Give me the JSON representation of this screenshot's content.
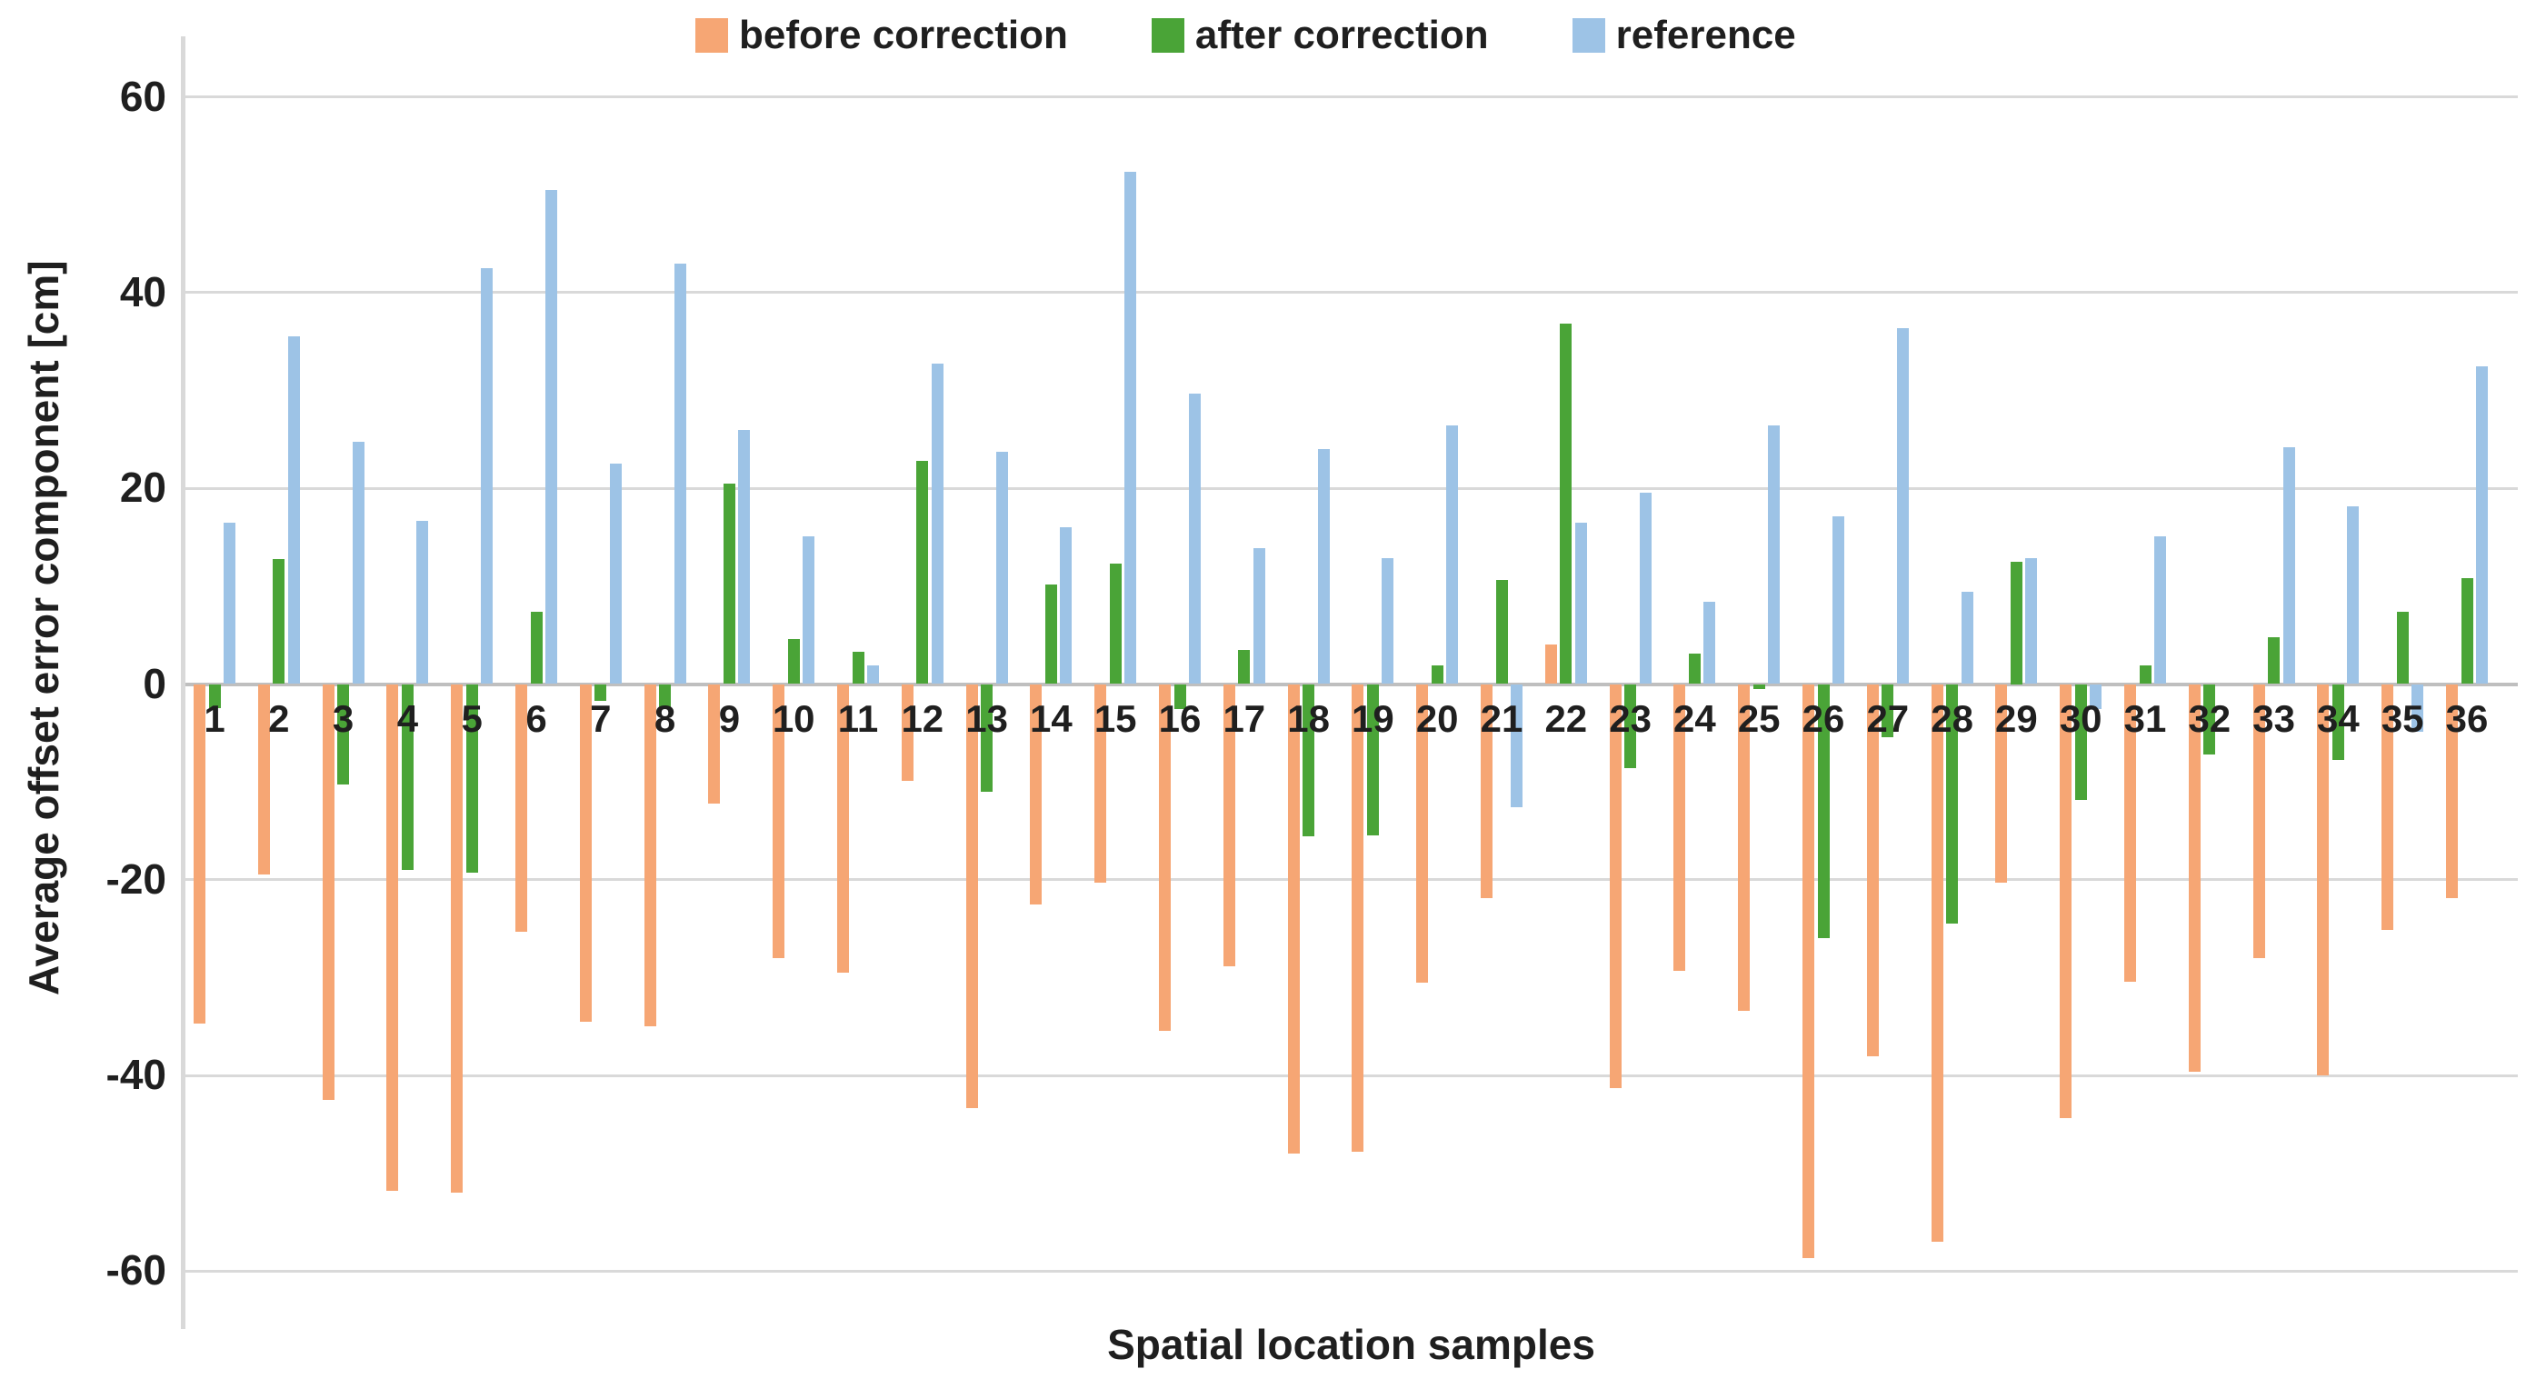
{
  "axes": {
    "y_title": "Average offset error component [cm]",
    "x_title": "Spatial location samples"
  },
  "chart_data": {
    "type": "bar",
    "title": "",
    "xlabel": "Spatial location samples",
    "ylabel": "Average offset error component [cm]",
    "ylim": [
      -66,
      62
    ],
    "yticks": [
      60,
      40,
      20,
      0,
      -20,
      -40,
      -60
    ],
    "grid": true,
    "legend_position": "top",
    "categories": [
      "1",
      "2",
      "3",
      "4",
      "5",
      "6",
      "7",
      "8",
      "9",
      "10",
      "11",
      "12",
      "13",
      "14",
      "15",
      "16",
      "17",
      "18",
      "19",
      "20",
      "21",
      "22",
      "23",
      "24",
      "25",
      "26",
      "27",
      "28",
      "29",
      "30",
      "31",
      "32",
      "33",
      "34",
      "35",
      "36"
    ],
    "series": [
      {
        "name": "before correction",
        "color": "#F6A674",
        "values": [
          -34.7,
          -19.5,
          -42.5,
          -51.8,
          -52.0,
          -25.3,
          -34.5,
          -35.0,
          -12.2,
          -28.0,
          -29.5,
          -9.9,
          -43.3,
          -22.5,
          -20.3,
          -35.4,
          -28.8,
          -48.0,
          -47.8,
          -30.5,
          -21.9,
          4.0,
          -41.3,
          -29.3,
          -33.4,
          -58.7,
          -38.0,
          -57.0,
          -20.3,
          -44.4,
          -30.4,
          -39.6,
          -28.0,
          -40.0,
          -25.1,
          -21.9
        ]
      },
      {
        "name": "after correction",
        "color": "#4AA437",
        "values": [
          -2.5,
          12.8,
          -10.3,
          -19.0,
          -19.3,
          7.4,
          -1.7,
          -2.4,
          20.5,
          4.6,
          3.3,
          22.8,
          -11.0,
          10.2,
          12.3,
          -2.6,
          3.5,
          -15.6,
          -15.5,
          1.9,
          10.6,
          36.8,
          -8.6,
          3.1,
          -0.5,
          -26.0,
          -5.4,
          -24.5,
          12.5,
          -11.8,
          1.9,
          -7.2,
          4.8,
          -7.8,
          7.4,
          10.8
        ]
      },
      {
        "name": "reference",
        "color": "#9DC3E6",
        "values": [
          16.5,
          35.5,
          24.8,
          16.7,
          42.5,
          50.5,
          22.5,
          43.0,
          26.0,
          15.1,
          1.9,
          32.7,
          23.7,
          16.0,
          52.3,
          29.7,
          13.9,
          24.0,
          12.9,
          26.4,
          -12.6,
          16.5,
          19.6,
          8.4,
          26.4,
          17.1,
          36.4,
          9.4,
          12.9,
          -2.6,
          15.1,
          0,
          24.2,
          18.2,
          -4.9,
          32.5
        ]
      }
    ]
  }
}
